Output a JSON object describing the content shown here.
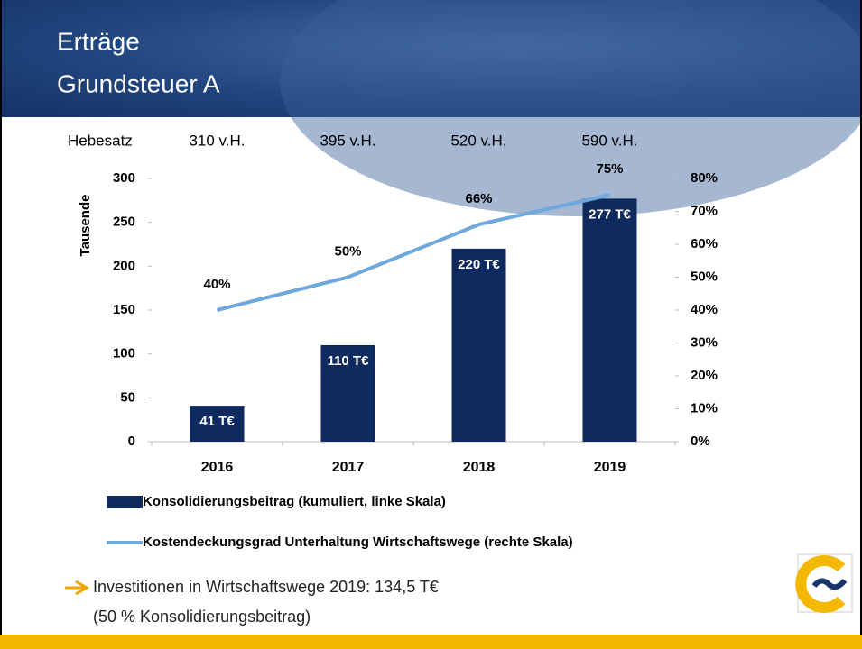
{
  "header": {
    "title_lines": [
      "Erträge",
      "Grundsteuer A"
    ]
  },
  "hebesatz": {
    "label": "Hebesatz",
    "values": [
      "310 v.H.",
      "395 v.H.",
      "520 v.H.",
      "590 v.H."
    ]
  },
  "chart_data": {
    "type": "bar-line",
    "categories": [
      "2016",
      "2017",
      "2018",
      "2019"
    ],
    "y_label": "Tausende",
    "ylim": [
      0,
      300
    ],
    "yticks": [
      0,
      50,
      100,
      150,
      200,
      250,
      300
    ],
    "y2lim": [
      0,
      80
    ],
    "y2ticks": [
      {
        "value": 0,
        "label": "0%"
      },
      {
        "value": 10,
        "label": "10%"
      },
      {
        "value": 20,
        "label": "20%"
      },
      {
        "value": 30,
        "label": "30%"
      },
      {
        "value": 40,
        "label": "40%"
      },
      {
        "value": 50,
        "label": "50%"
      },
      {
        "value": 60,
        "label": "60%"
      },
      {
        "value": 70,
        "label": "70%"
      },
      {
        "value": 80,
        "label": "80%"
      }
    ],
    "grid": false,
    "series": [
      {
        "name": "Konsolidierungsbeitrag (kumuliert, linke Skala)",
        "kind": "bar",
        "color": "#0f2a5e",
        "values": [
          41,
          110,
          220,
          277
        ],
        "value_labels": [
          "41 T€",
          "110 T€",
          "220 T€",
          "277 T€"
        ]
      },
      {
        "name": "Kostendeckungsgrad Unterhaltung Wirtschaftswege (rechte Skala)",
        "kind": "line",
        "axis": "y2",
        "color": "#6fa8dc",
        "values": [
          40,
          50,
          66,
          75
        ],
        "value_labels": [
          "40%",
          "50%",
          "66%",
          "75%"
        ]
      }
    ]
  },
  "bullet": {
    "lines": [
      "Investitionen in Wirtschaftswege 2019: 134,5 T€",
      "(50 % Konsolidierungsbeitrag)"
    ]
  }
}
